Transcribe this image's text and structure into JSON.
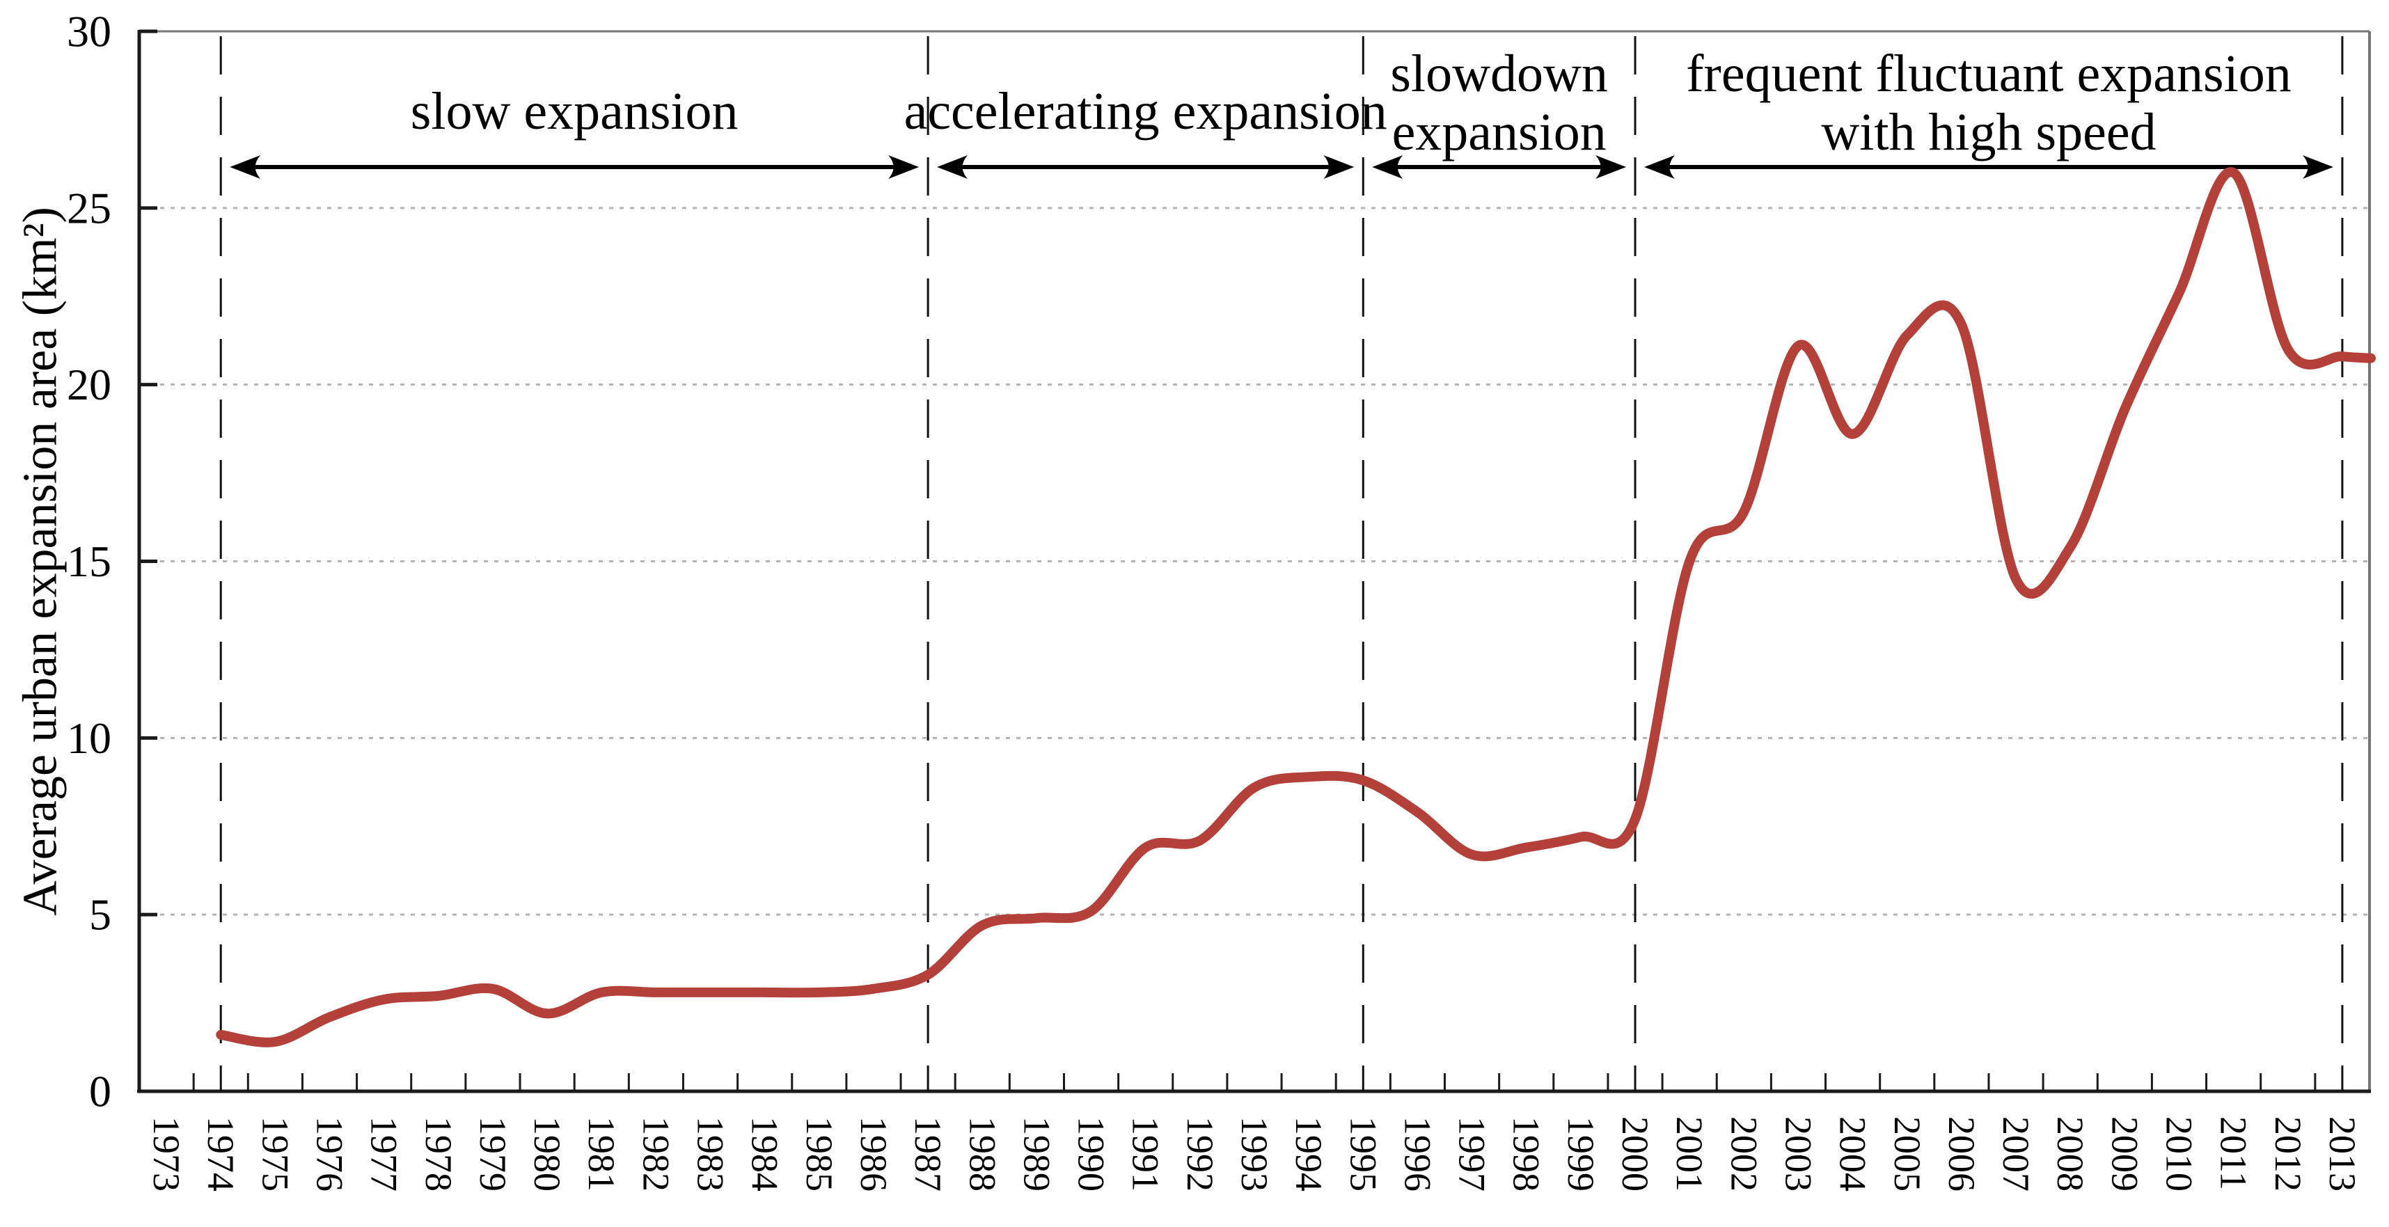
{
  "figure": {
    "colors": {
      "line": "#b4403a",
      "grid_dots": "#b3b3b3",
      "axis_black": "#1a1a1a",
      "border_gray": "#767676",
      "dashed_divider": "#111111",
      "arrow": "#000000",
      "text": "#000000",
      "background": "#ffffff"
    },
    "y_axis": {
      "title": "Average urban expansion area (km²)",
      "tick_labels": [
        "0",
        "5",
        "10",
        "15",
        "20",
        "25",
        "30"
      ],
      "tick_values": [
        0,
        5,
        10,
        15,
        20,
        25,
        30
      ],
      "min": 0,
      "max": 30
    },
    "x_axis": {
      "year_labels": [
        "1973",
        "1974",
        "1975",
        "1976",
        "1977",
        "1978",
        "1979",
        "1980",
        "1981",
        "1982",
        "1983",
        "1984",
        "1985",
        "1986",
        "1987",
        "1988",
        "1989",
        "1990",
        "1991",
        "1992",
        "1993",
        "1994",
        "1995",
        "1996",
        "1997",
        "1998",
        "1999",
        "2000",
        "2001",
        "2002",
        "2003",
        "2004",
        "2005",
        "2006",
        "2007",
        "2008",
        "2009",
        "2010",
        "2011",
        "2012",
        "2013"
      ]
    },
    "phases": [
      {
        "id": "slow-expansion",
        "label_lines": [
          "slow expansion"
        ],
        "start_year": 1974,
        "end_year": 1987
      },
      {
        "id": "accelerating-expansion",
        "label_lines": [
          "accelerating expansion"
        ],
        "start_year": 1987,
        "end_year": 1995
      },
      {
        "id": "slowdown-expansion",
        "label_lines": [
          "slowdown",
          "expansion"
        ],
        "start_year": 1995,
        "end_year": 2000
      },
      {
        "id": "frequent-fluctuant-expansion",
        "label_lines": [
          "frequent fluctuant expansion",
          "with high speed"
        ],
        "start_year": 2000,
        "end_year": 2013
      }
    ],
    "chart_data": {
      "type": "line",
      "title": "",
      "xlabel": "",
      "ylabel": "Average urban expansion area (km²)",
      "ylim": [
        0,
        30
      ],
      "ytick_interval": 5,
      "grid": "horizontal-dotted",
      "legend_position": "none",
      "x": [
        1974,
        1975,
        1976,
        1977,
        1978,
        1979,
        1980,
        1981,
        1982,
        1983,
        1984,
        1985,
        1986,
        1987,
        1988,
        1989,
        1990,
        1991,
        1992,
        1993,
        1994,
        1995,
        1996,
        1997,
        1998,
        1999,
        2000,
        2001,
        2002,
        2003,
        2004,
        2005,
        2006,
        2007,
        2008,
        2009,
        2010,
        2011,
        2012,
        2013
      ],
      "series": [
        {
          "name": "Average urban expansion area",
          "color": "#b4403a",
          "smooth": true,
          "values": [
            1.6,
            1.4,
            2.1,
            2.6,
            2.7,
            2.9,
            2.2,
            2.8,
            2.8,
            2.8,
            2.8,
            2.8,
            2.9,
            3.3,
            4.7,
            4.9,
            5.1,
            6.9,
            7.1,
            8.6,
            8.9,
            8.8,
            7.9,
            6.7,
            6.9,
            7.2,
            7.7,
            15.0,
            16.4,
            21.1,
            18.6,
            21.4,
            21.7,
            14.5,
            15.4,
            19.3,
            22.6,
            26.0,
            21.0,
            20.8
          ]
        }
      ],
      "annotations": [
        {
          "text": "slow expansion",
          "x_range": [
            1974,
            1987
          ],
          "style": "double-headed-arrow"
        },
        {
          "text": "accelerating expansion",
          "x_range": [
            1987,
            1995
          ],
          "style": "double-headed-arrow"
        },
        {
          "text": "slowdown expansion",
          "x_range": [
            1995,
            2000
          ],
          "style": "double-headed-arrow"
        },
        {
          "text": "frequent fluctuant expansion with high speed",
          "x_range": [
            2000,
            2013
          ],
          "style": "double-headed-arrow"
        }
      ]
    }
  }
}
